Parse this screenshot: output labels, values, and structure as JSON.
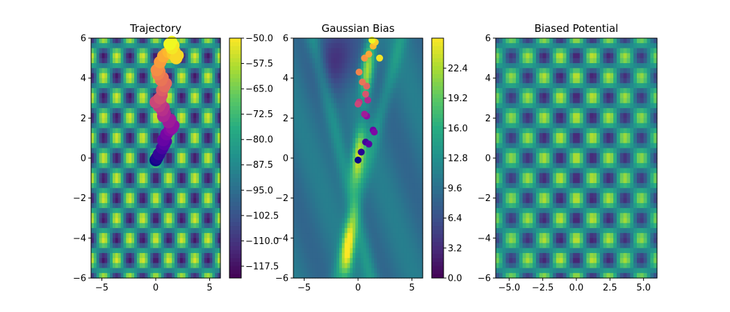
{
  "chart_data": [
    {
      "type": "heatmap",
      "title": "Trajectory",
      "xlim": [
        -6,
        6
      ],
      "ylim": [
        -6,
        6
      ],
      "xticks": [
        -5,
        0,
        5
      ],
      "yticks": [
        -6,
        -4,
        -2,
        0,
        2,
        4,
        6
      ],
      "xtick_labels": [
        "−5",
        "0",
        "5"
      ],
      "ytick_labels": [
        "−6",
        "−4",
        "−2",
        "0",
        "2",
        "4",
        "6"
      ],
      "colormap": "viridis",
      "colorbar": {
        "range": [
          -121,
          -50
        ],
        "ticks": [
          -50.0,
          -57.5,
          -65.0,
          -72.5,
          -80.0,
          -87.5,
          -95.0,
          -102.5,
          -110.0,
          -117.5
        ],
        "tick_labels": [
          "−50.0",
          "−57.5",
          "−65.0",
          "−72.5",
          "−80.0",
          "−87.5",
          "−95.0",
          "−102.5",
          "−110.0",
          "−117.5"
        ]
      },
      "trajectory": {
        "colormap": "plasma",
        "x": [
          0.0,
          0.1,
          0.3,
          0.6,
          0.8,
          0.7,
          1.0,
          1.3,
          1.5,
          1.2,
          0.7,
          0.6,
          0.3,
          0.0,
          0.4,
          0.6,
          0.8,
          0.5,
          0.2,
          0.1,
          0.4,
          0.7,
          1.2,
          1.6,
          1.9,
          1.5,
          1.3
        ],
        "y": [
          -0.1,
          0.0,
          0.2,
          0.5,
          0.7,
          0.9,
          1.2,
          1.4,
          1.5,
          1.8,
          2.1,
          2.4,
          2.6,
          2.8,
          3.0,
          3.4,
          3.6,
          3.9,
          4.2,
          4.4,
          4.8,
          5.1,
          5.3,
          5.2,
          5.0,
          5.5,
          5.7
        ]
      }
    },
    {
      "type": "heatmap",
      "title": "Gaussian Bias",
      "xlim": [
        -6,
        6
      ],
      "ylim": [
        -6,
        6
      ],
      "xticks": [
        -5,
        0,
        5
      ],
      "yticks": [
        -6,
        -4,
        -2,
        0,
        2,
        4,
        6
      ],
      "xtick_labels": [
        "−5",
        "0",
        "5"
      ],
      "ytick_labels": [
        "−6",
        "−4",
        "−2",
        "0",
        "2",
        "4",
        "6"
      ],
      "colormap": "viridis",
      "colorbar": {
        "range": [
          0.0,
          25.6
        ],
        "ticks": [
          0.0,
          3.2,
          6.4,
          9.6,
          12.8,
          16.0,
          19.2,
          22.4
        ],
        "tick_labels": [
          "0.0",
          "3.2",
          "6.4",
          "9.6",
          "12.8",
          "16.0",
          "19.2",
          "22.4"
        ]
      },
      "hills": {
        "colormap": "plasma",
        "x": [
          0.0,
          0.3,
          0.7,
          1.0,
          1.4,
          1.5,
          0.8,
          0.6,
          0.9,
          0.1,
          0.0,
          0.7,
          0.8,
          0.4,
          0.1,
          0.6,
          1.0,
          1.4,
          1.6,
          2.0,
          1.3
        ],
        "y": [
          -0.1,
          0.3,
          0.8,
          0.7,
          1.4,
          1.3,
          2.1,
          2.2,
          2.9,
          2.8,
          2.7,
          3.2,
          3.6,
          3.8,
          4.3,
          5.0,
          5.2,
          5.6,
          5.8,
          5.0,
          5.9
        ]
      }
    },
    {
      "type": "heatmap",
      "title": "Biased Potential",
      "xlim": [
        -6,
        6
      ],
      "ylim": [
        -6,
        6
      ],
      "xticks": [
        -5.0,
        -2.5,
        0.0,
        2.5,
        5.0
      ],
      "yticks": [
        -6,
        -4,
        -2,
        0,
        2,
        4,
        6
      ],
      "xtick_labels": [
        "−5.0",
        "−2.5",
        "0.0",
        "2.5",
        "5.0"
      ],
      "ytick_labels": [
        "−6",
        "−4",
        "−2",
        "0",
        "2",
        "4",
        "6"
      ],
      "colormap": "viridis"
    }
  ]
}
